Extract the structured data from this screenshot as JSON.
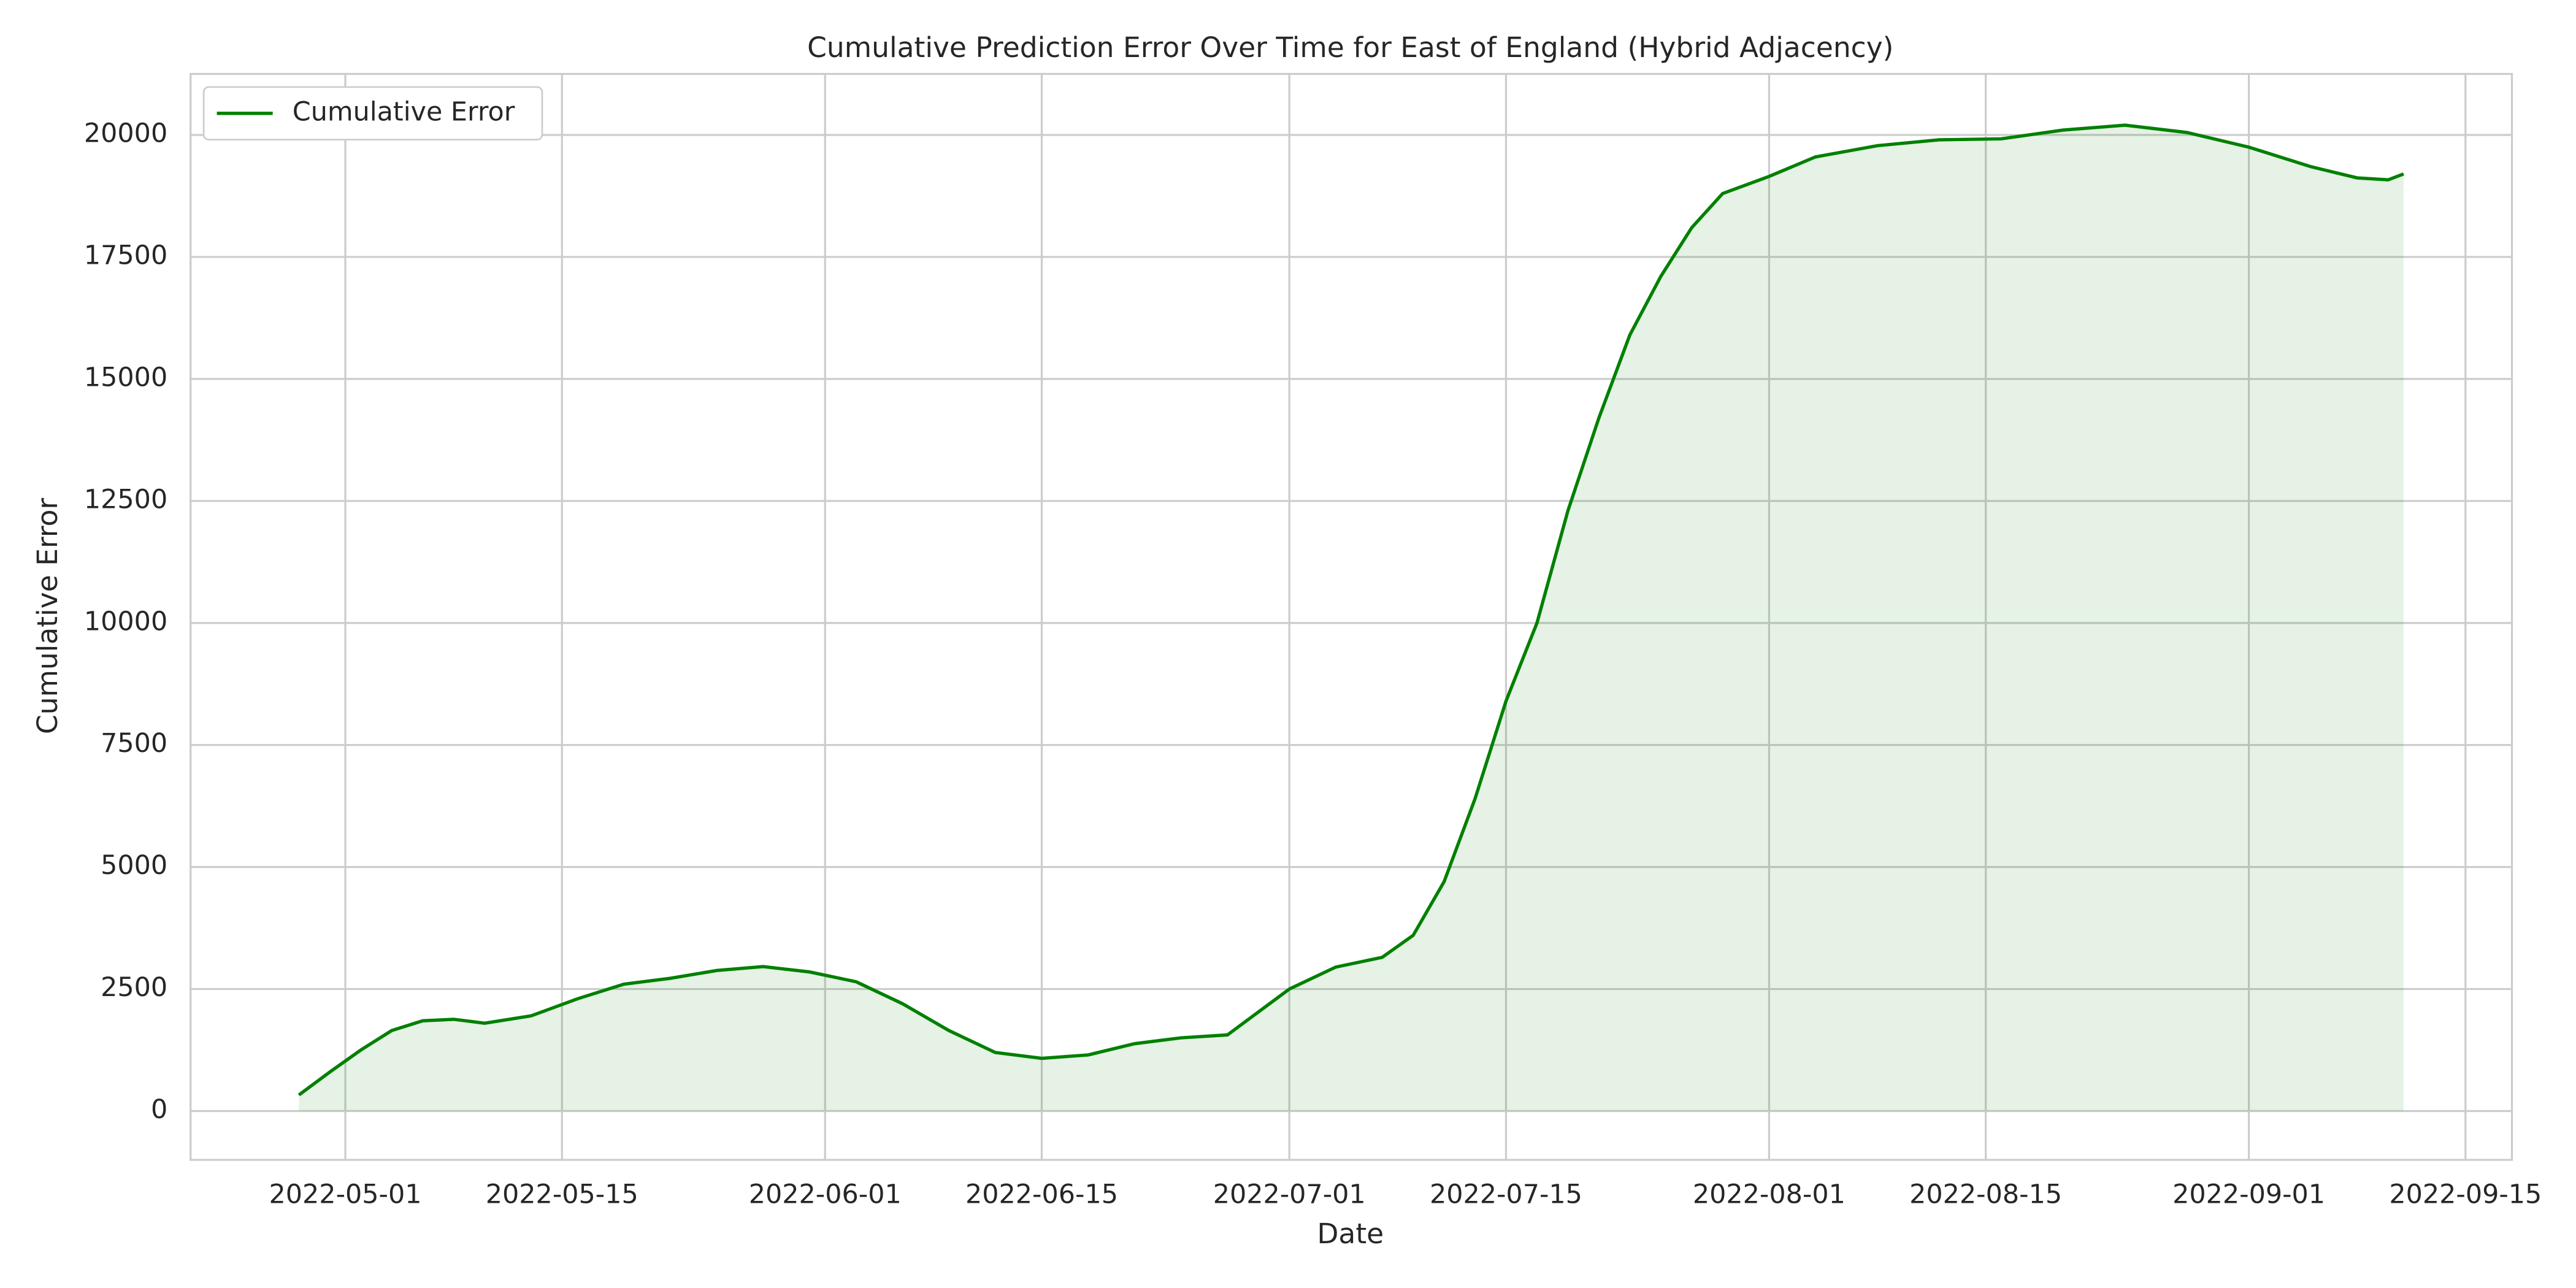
{
  "chart_data": {
    "type": "area-line",
    "title": "Cumulative Prediction Error Over Time for East of England (Hybrid Adjacency)",
    "x_label": "Date",
    "y_label": "Cumulative Error",
    "x": [
      "2022-04-28",
      "2022-04-30",
      "2022-05-02",
      "2022-05-04",
      "2022-05-06",
      "2022-05-08",
      "2022-05-10",
      "2022-05-13",
      "2022-05-16",
      "2022-05-19",
      "2022-05-22",
      "2022-05-25",
      "2022-05-28",
      "2022-05-31",
      "2022-06-03",
      "2022-06-06",
      "2022-06-09",
      "2022-06-12",
      "2022-06-15",
      "2022-06-18",
      "2022-06-21",
      "2022-06-24",
      "2022-06-27",
      "2022-07-01",
      "2022-07-04",
      "2022-07-07",
      "2022-07-09",
      "2022-07-11",
      "2022-07-13",
      "2022-07-15",
      "2022-07-17",
      "2022-07-19",
      "2022-07-21",
      "2022-07-23",
      "2022-07-25",
      "2022-07-27",
      "2022-07-29",
      "2022-08-01",
      "2022-08-04",
      "2022-08-08",
      "2022-08-12",
      "2022-08-16",
      "2022-08-20",
      "2022-08-24",
      "2022-08-28",
      "2022-09-01",
      "2022-09-05",
      "2022-09-08",
      "2022-09-10",
      "2022-09-11"
    ],
    "series": [
      {
        "name": "Cumulative Error",
        "color": "#008000",
        "fill_opacity": 0.1,
        "values": [
          330,
          800,
          1250,
          1650,
          1850,
          1880,
          1800,
          1950,
          2300,
          2600,
          2720,
          2880,
          2960,
          2850,
          2650,
          2200,
          1650,
          1200,
          1080,
          1150,
          1380,
          1500,
          1560,
          2500,
          2950,
          3150,
          3600,
          4700,
          6400,
          8400,
          10000,
          12300,
          14200,
          15900,
          17100,
          18100,
          18800,
          19150,
          19550,
          19780,
          19900,
          19920,
          20100,
          20200,
          20050,
          19750,
          19350,
          19120,
          19080,
          19200
        ]
      }
    ],
    "xlim": [
      "2022-04-21",
      "2022-09-18"
    ],
    "xticks": [
      "2022-05-01",
      "2022-05-15",
      "2022-06-01",
      "2022-06-15",
      "2022-07-01",
      "2022-07-15",
      "2022-08-01",
      "2022-08-15",
      "2022-09-01",
      "2022-09-15"
    ],
    "ylim": [
      -1000,
      21250
    ],
    "yticks": [
      0,
      2500,
      5000,
      7500,
      10000,
      12500,
      15000,
      17500,
      20000
    ],
    "grid": true,
    "legend": "upper left"
  }
}
